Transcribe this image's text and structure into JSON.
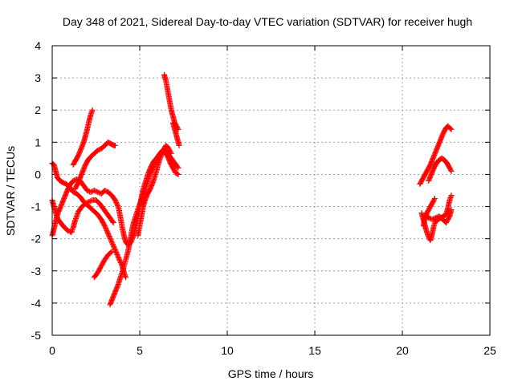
{
  "chart_data": {
    "type": "scatter",
    "title": "Day 348 of 2021, Sidereal Day-to-day VTEC variation (SDTVAR) for receiver hugh",
    "xlabel": "GPS time / hours",
    "ylabel": "SDTVAR / TECUs",
    "xlim": [
      0,
      25
    ],
    "ylim": [
      -5,
      4
    ],
    "xticks": [
      0,
      5,
      10,
      15,
      20,
      25
    ],
    "yticks": [
      -5,
      -4,
      -3,
      -2,
      -1,
      0,
      1,
      2,
      3,
      4
    ],
    "grid": true,
    "marker": "plus",
    "series_color": "#ff0000",
    "series": [
      {
        "values": [
          [
            0.0,
            0.35
          ],
          [
            0.1,
            0.3
          ],
          [
            0.2,
            0.1
          ],
          [
            0.3,
            -0.1
          ],
          [
            0.45,
            -0.2
          ],
          [
            0.6,
            -0.25
          ],
          [
            0.8,
            -0.3
          ],
          [
            1.0,
            -0.4
          ],
          [
            1.2,
            -0.55
          ],
          [
            1.4,
            -0.6
          ],
          [
            1.6,
            -0.7
          ],
          [
            1.8,
            -0.85
          ],
          [
            2.0,
            -0.95
          ],
          [
            2.2,
            -1.05
          ],
          [
            2.4,
            -1.15
          ],
          [
            2.6,
            -1.25
          ],
          [
            2.8,
            -1.4
          ],
          [
            3.0,
            -1.6
          ],
          [
            3.2,
            -1.85
          ],
          [
            3.4,
            -2.1
          ],
          [
            3.6,
            -2.35
          ],
          [
            3.8,
            -2.6
          ],
          [
            4.0,
            -2.85
          ],
          [
            4.1,
            -3.05
          ],
          [
            4.2,
            -3.2
          ]
        ]
      },
      {
        "values": [
          [
            0.0,
            -0.8
          ],
          [
            0.1,
            -1.0
          ],
          [
            0.2,
            -1.2
          ],
          [
            0.3,
            -1.35
          ],
          [
            0.4,
            -1.45
          ],
          [
            0.55,
            -1.55
          ],
          [
            0.7,
            -1.65
          ],
          [
            0.9,
            -1.75
          ],
          [
            1.1,
            -1.8
          ],
          [
            1.2,
            -1.65
          ],
          [
            1.3,
            -1.45
          ],
          [
            1.4,
            -1.3
          ],
          [
            1.5,
            -1.15
          ],
          [
            1.7,
            -1.0
          ],
          [
            1.9,
            -0.9
          ],
          [
            2.1,
            -0.85
          ],
          [
            2.3,
            -0.8
          ],
          [
            2.5,
            -0.8
          ],
          [
            2.7,
            -0.9
          ],
          [
            2.9,
            -1.05
          ],
          [
            3.1,
            -1.2
          ],
          [
            3.3,
            -1.35
          ],
          [
            3.5,
            -1.5
          ]
        ]
      },
      {
        "values": [
          [
            0.0,
            -1.9
          ],
          [
            0.1,
            -1.7
          ],
          [
            0.2,
            -1.45
          ],
          [
            0.3,
            -1.25
          ],
          [
            0.45,
            -1.05
          ],
          [
            0.6,
            -0.85
          ],
          [
            0.75,
            -0.65
          ],
          [
            0.9,
            -0.45
          ],
          [
            1.05,
            -0.3
          ],
          [
            1.2,
            -0.2
          ],
          [
            1.4,
            -0.15
          ],
          [
            1.6,
            -0.2
          ],
          [
            1.8,
            -0.35
          ],
          [
            2.0,
            -0.5
          ],
          [
            2.2,
            -0.55
          ],
          [
            2.4,
            -0.5
          ],
          [
            2.6,
            -0.55
          ],
          [
            2.8,
            -0.6
          ],
          [
            3.0,
            -0.5
          ],
          [
            3.2,
            -0.55
          ],
          [
            3.4,
            -0.65
          ],
          [
            3.6,
            -0.8
          ],
          [
            3.8,
            -1.05
          ],
          [
            3.9,
            -1.35
          ],
          [
            4.0,
            -1.65
          ],
          [
            4.1,
            -1.9
          ],
          [
            4.2,
            -2.1
          ],
          [
            4.35,
            -2.2
          ],
          [
            4.5,
            -2.1
          ],
          [
            4.65,
            -1.9
          ],
          [
            4.8,
            -1.6
          ],
          [
            4.9,
            -1.3
          ],
          [
            5.0,
            -1.0
          ],
          [
            5.1,
            -0.7
          ],
          [
            5.2,
            -0.45
          ],
          [
            5.35,
            -0.2
          ],
          [
            5.5,
            0.05
          ],
          [
            5.65,
            0.25
          ],
          [
            5.8,
            0.4
          ],
          [
            5.95,
            0.5
          ],
          [
            6.1,
            0.6
          ],
          [
            6.25,
            0.7
          ],
          [
            6.4,
            0.75
          ],
          [
            6.6,
            0.65
          ],
          [
            6.8,
            0.5
          ],
          [
            7.0,
            0.35
          ],
          [
            7.2,
            0.2
          ]
        ]
      },
      {
        "values": [
          [
            1.2,
            0.3
          ],
          [
            1.35,
            0.45
          ],
          [
            1.5,
            0.6
          ],
          [
            1.65,
            0.8
          ],
          [
            1.8,
            1.0
          ],
          [
            1.9,
            1.2
          ],
          [
            2.0,
            1.4
          ],
          [
            2.1,
            1.65
          ],
          [
            2.2,
            1.85
          ],
          [
            2.3,
            2.0
          ]
        ]
      },
      {
        "values": [
          [
            1.3,
            -0.45
          ],
          [
            1.45,
            -0.3
          ],
          [
            1.6,
            -0.1
          ],
          [
            1.75,
            0.1
          ],
          [
            1.9,
            0.3
          ],
          [
            2.05,
            0.45
          ],
          [
            2.2,
            0.55
          ],
          [
            2.4,
            0.65
          ],
          [
            2.6,
            0.75
          ],
          [
            2.8,
            0.8
          ],
          [
            3.0,
            0.9
          ],
          [
            3.2,
            1.0
          ],
          [
            3.35,
            0.95
          ],
          [
            3.5,
            0.9
          ],
          [
            3.6,
            0.9
          ]
        ]
      },
      {
        "values": [
          [
            2.4,
            -3.2
          ],
          [
            2.6,
            -3.05
          ],
          [
            2.8,
            -2.85
          ],
          [
            3.0,
            -2.65
          ],
          [
            3.2,
            -2.5
          ],
          [
            3.4,
            -2.4
          ]
        ]
      },
      {
        "values": [
          [
            3.3,
            -4.05
          ],
          [
            3.45,
            -3.85
          ],
          [
            3.6,
            -3.65
          ],
          [
            3.75,
            -3.45
          ],
          [
            3.9,
            -3.2
          ],
          [
            4.05,
            -2.95
          ],
          [
            4.2,
            -2.65
          ],
          [
            4.35,
            -2.35
          ],
          [
            4.45,
            -2.05
          ],
          [
            4.55,
            -1.75
          ],
          [
            4.65,
            -1.5
          ],
          [
            4.8,
            -1.25
          ],
          [
            4.95,
            -1.0
          ],
          [
            5.1,
            -0.8
          ],
          [
            5.25,
            -0.55
          ],
          [
            5.4,
            -0.3
          ],
          [
            5.55,
            -0.05
          ],
          [
            5.7,
            0.15
          ],
          [
            5.85,
            0.35
          ],
          [
            6.0,
            0.5
          ],
          [
            6.15,
            0.65
          ],
          [
            6.3,
            0.75
          ],
          [
            6.45,
            0.7
          ],
          [
            6.6,
            0.55
          ],
          [
            6.75,
            0.35
          ],
          [
            6.9,
            0.2
          ],
          [
            7.05,
            0.05
          ],
          [
            7.2,
            0.0
          ]
        ]
      },
      {
        "values": [
          [
            4.9,
            -1.9
          ],
          [
            5.0,
            -1.6
          ],
          [
            5.1,
            -1.3
          ],
          [
            5.2,
            -1.0
          ],
          [
            5.3,
            -0.8
          ],
          [
            5.45,
            -0.6
          ],
          [
            5.6,
            -0.45
          ],
          [
            5.75,
            -0.25
          ],
          [
            5.9,
            0.0
          ],
          [
            6.05,
            0.3
          ],
          [
            6.2,
            0.55
          ],
          [
            6.35,
            0.75
          ],
          [
            6.5,
            0.9
          ],
          [
            6.6,
            0.85
          ],
          [
            6.7,
            0.75
          ],
          [
            6.8,
            0.65
          ]
        ]
      },
      {
        "values": [
          [
            6.4,
            3.1
          ],
          [
            6.5,
            2.9
          ],
          [
            6.6,
            2.6
          ],
          [
            6.7,
            2.3
          ],
          [
            6.8,
            2.0
          ],
          [
            6.9,
            1.8
          ],
          [
            7.0,
            1.6
          ],
          [
            7.1,
            1.5
          ],
          [
            7.2,
            1.4
          ]
        ]
      },
      {
        "values": [
          [
            6.9,
            1.6
          ],
          [
            7.0,
            1.4
          ],
          [
            7.1,
            1.2
          ],
          [
            7.2,
            1.0
          ],
          [
            7.25,
            0.9
          ]
        ]
      },
      {
        "values": [
          [
            21.0,
            -0.3
          ],
          [
            21.15,
            -0.15
          ],
          [
            21.3,
            0.0
          ],
          [
            21.45,
            0.15
          ],
          [
            21.6,
            0.3
          ],
          [
            21.75,
            0.5
          ],
          [
            21.9,
            0.7
          ],
          [
            22.05,
            0.9
          ],
          [
            22.2,
            1.1
          ],
          [
            22.35,
            1.3
          ],
          [
            22.5,
            1.45
          ],
          [
            22.6,
            1.5
          ],
          [
            22.7,
            1.45
          ],
          [
            22.8,
            1.4
          ]
        ]
      },
      {
        "values": [
          [
            21.1,
            -1.2
          ],
          [
            21.2,
            -1.4
          ],
          [
            21.3,
            -1.6
          ],
          [
            21.4,
            -1.8
          ],
          [
            21.5,
            -1.95
          ],
          [
            21.6,
            -2.05
          ],
          [
            21.7,
            -1.85
          ],
          [
            21.8,
            -1.6
          ],
          [
            21.9,
            -1.45
          ],
          [
            22.05,
            -1.4
          ],
          [
            22.2,
            -1.35
          ],
          [
            22.35,
            -1.3
          ],
          [
            22.5,
            -1.25
          ],
          [
            22.6,
            -1.05
          ],
          [
            22.7,
            -0.8
          ],
          [
            22.8,
            -0.65
          ]
        ]
      },
      {
        "values": [
          [
            21.2,
            -1.6
          ],
          [
            21.3,
            -1.35
          ],
          [
            21.45,
            -1.15
          ],
          [
            21.6,
            -1.0
          ],
          [
            21.75,
            -0.85
          ],
          [
            21.85,
            -0.75
          ]
        ]
      },
      {
        "values": [
          [
            21.5,
            -0.2
          ],
          [
            21.65,
            0.0
          ],
          [
            21.8,
            0.2
          ],
          [
            21.95,
            0.35
          ],
          [
            22.1,
            0.45
          ],
          [
            22.25,
            0.5
          ],
          [
            22.4,
            0.45
          ],
          [
            22.55,
            0.35
          ],
          [
            22.7,
            0.2
          ],
          [
            22.8,
            0.1
          ]
        ]
      },
      {
        "values": [
          [
            21.3,
            -1.25
          ],
          [
            21.5,
            -1.35
          ],
          [
            21.7,
            -1.4
          ],
          [
            21.9,
            -1.35
          ],
          [
            22.1,
            -1.3
          ],
          [
            22.3,
            -1.4
          ],
          [
            22.5,
            -1.5
          ],
          [
            22.7,
            -1.3
          ],
          [
            22.8,
            -1.1
          ]
        ]
      }
    ]
  }
}
